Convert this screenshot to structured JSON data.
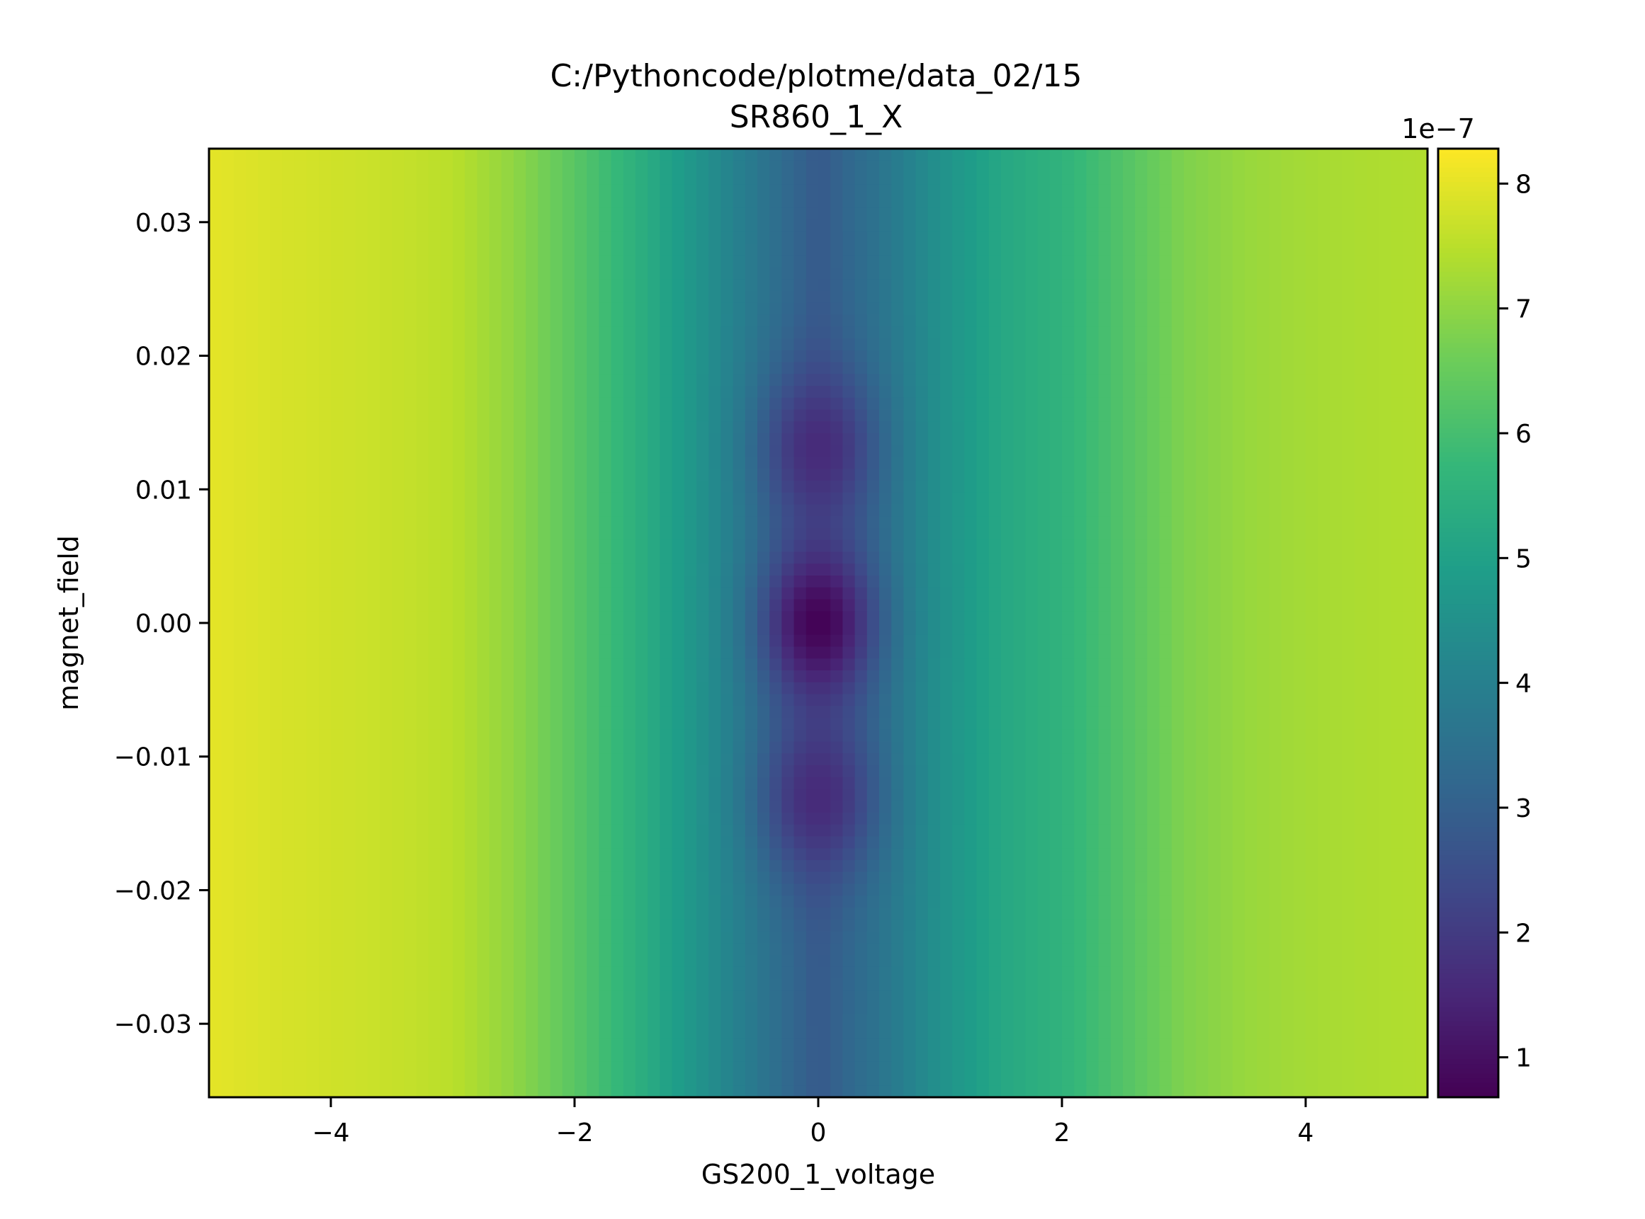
{
  "chart_data": {
    "type": "heatmap",
    "title": "C:/Pythoncode/plotme/data_02/15",
    "subtitle": "SR860_1_X",
    "xlabel": "GS200_1_voltage",
    "ylabel": "magnet_field",
    "xlim": [
      -5.0,
      5.0
    ],
    "ylim": [
      -0.0355,
      0.0355
    ],
    "x_ticks": [
      -4,
      -2,
      0,
      2,
      4
    ],
    "x_tick_labels": [
      "−4",
      "−2",
      "0",
      "2",
      "4"
    ],
    "y_ticks": [
      -0.03,
      -0.02,
      -0.01,
      0.0,
      0.01,
      0.02,
      0.03
    ],
    "y_tick_labels": [
      "−0.03",
      "−0.02",
      "−0.01",
      "0.00",
      "0.01",
      "0.02",
      "0.03"
    ],
    "colormap": "viridis",
    "colorbar": {
      "range": [
        0.68,
        8.28
      ],
      "ticks": [
        1,
        2,
        3,
        4,
        5,
        6,
        7,
        8
      ],
      "tick_labels": [
        "1",
        "2",
        "3",
        "4",
        "5",
        "6",
        "7",
        "8"
      ],
      "offset_label": "1e−7"
    },
    "value_scale": 1e-07,
    "grid": false,
    "x_profile": {
      "x": [
        -5.0,
        -4.5,
        -4.0,
        -3.5,
        -3.0,
        -2.5,
        -2.0,
        -1.5,
        -1.0,
        -0.5,
        0.0,
        0.5,
        1.0,
        1.5,
        2.0,
        2.5,
        3.0,
        3.5,
        4.0,
        4.5,
        5.0
      ],
      "values": [
        8.0,
        7.85,
        7.75,
        7.65,
        7.5,
        7.0,
        6.3,
        5.5,
        4.6,
        3.7,
        2.8,
        3.6,
        4.5,
        5.2,
        5.6,
        6.2,
        6.8,
        7.1,
        7.25,
        7.35,
        7.4
      ]
    },
    "features": [
      {
        "x": 0.0,
        "y": 0.0,
        "value": 0.7,
        "description": "minimum"
      },
      {
        "x": 0.0,
        "y": 0.013,
        "value": 1.6
      },
      {
        "x": 0.0,
        "y": -0.013,
        "value": 1.6
      }
    ]
  }
}
